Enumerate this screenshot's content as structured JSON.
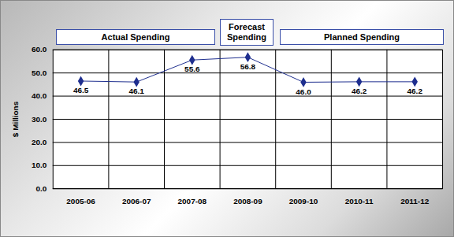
{
  "chart_data": {
    "type": "line",
    "y_label": "$ Millions",
    "annotations": [
      "Actual Spending",
      "Forecast Spending",
      "Planned Spending"
    ],
    "categories": [
      "2005-06",
      "2006-07",
      "2007-08",
      "2008-09",
      "2009-10",
      "2010-11",
      "2011-12"
    ],
    "values": [
      46.5,
      46.1,
      55.6,
      56.8,
      46.0,
      46.2,
      46.2
    ],
    "value_labels": [
      "46.5",
      "46.1",
      "55.6",
      "56.8",
      "46.0",
      "46.2",
      "46.2"
    ],
    "color": "#1f2f8f",
    "marker": "diamond",
    "line_style": "solid",
    "ylim": [
      0,
      60
    ],
    "yticks": [
      {
        "value": 0,
        "label": "0.0"
      },
      {
        "value": 10,
        "label": "10.0"
      },
      {
        "value": 20,
        "label": "20.0"
      },
      {
        "value": 30,
        "label": "30.0"
      },
      {
        "value": 40,
        "label": "40.0"
      },
      {
        "value": 50,
        "label": "50.0"
      },
      {
        "value": 60,
        "label": "60.0"
      }
    ],
    "grid": true,
    "data_labels": true
  }
}
